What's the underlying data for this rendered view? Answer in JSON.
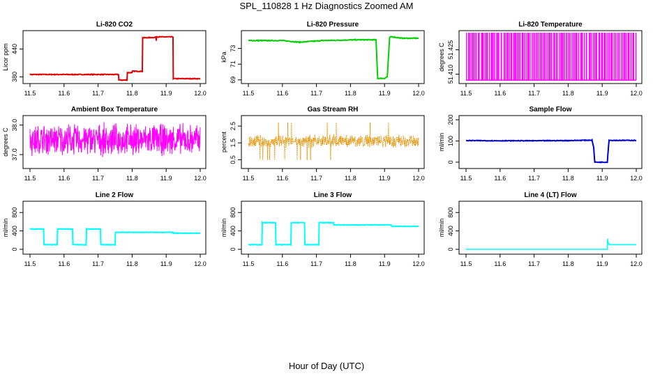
{
  "page_title": "SPL_110828 1 Hz Diagnostics Zoomed AM",
  "x_axis_label": "Hour of Day (UTC)",
  "chart_data": [
    {
      "type": "line",
      "title": "Li-820 CO2",
      "ylabel": "Licor ppm",
      "xlim": [
        11.5,
        12.0
      ],
      "ylim": [
        370,
        475
      ],
      "xticks": [
        "11.5",
        "11.6",
        "11.7",
        "11.8",
        "11.9",
        "12.0"
      ],
      "yticks": [
        "380",
        "440"
      ],
      "ytick_values": [
        380,
        440
      ],
      "color": "#e00000",
      "noise": 0.8,
      "x": [
        11.5,
        11.76,
        11.761,
        11.785,
        11.786,
        11.8,
        11.801,
        11.83,
        11.831,
        11.87,
        11.871,
        11.872,
        11.873,
        11.92,
        11.921,
        12.0
      ],
      "y": [
        385,
        385,
        373,
        373,
        389,
        389,
        392,
        392,
        464,
        465,
        458,
        468,
        466,
        466,
        376,
        376
      ]
    },
    {
      "type": "line",
      "title": "Li-820 Pressure",
      "ylabel": "kPa",
      "xlim": [
        11.5,
        12.0
      ],
      "ylim": [
        68.8,
        75
      ],
      "xticks": [
        "11.5",
        "11.6",
        "11.7",
        "11.8",
        "11.9",
        "12.0"
      ],
      "yticks": [
        "69",
        "71",
        "73"
      ],
      "ytick_values": [
        69,
        71,
        73
      ],
      "color": "#00d000",
      "noise": 0.05,
      "x": [
        11.5,
        11.6,
        11.65,
        11.72,
        11.82,
        11.875,
        11.88,
        11.9,
        11.908,
        11.915,
        11.92,
        11.95,
        12.0
      ],
      "y": [
        74.0,
        74.0,
        73.8,
        74.0,
        74.1,
        74.1,
        69.2,
        69.2,
        69.4,
        74.4,
        74.5,
        74.3,
        74.3
      ]
    },
    {
      "type": "spikes",
      "title": "Li-820 Temperature",
      "ylabel": "degrees C",
      "xlim": [
        11.5,
        12.0
      ],
      "ylim": [
        51.4055,
        51.4355
      ],
      "xticks": [
        "11.5",
        "11.6",
        "11.7",
        "11.8",
        "11.9",
        "12.0"
      ],
      "yticks": [
        "51.410",
        "51.425"
      ],
      "ytick_values": [
        51.41,
        51.425
      ],
      "color": "#ff00ff",
      "low": 51.4063,
      "high": 51.4355,
      "count": 120
    },
    {
      "type": "noise",
      "title": "Ambient Box Temperature",
      "ylabel": "degrees C",
      "xlim": [
        11.5,
        12.0
      ],
      "ylim": [
        36.6,
        38.25
      ],
      "xticks": [
        "11.5",
        "11.6",
        "11.7",
        "11.8",
        "11.9",
        "12.0"
      ],
      "yticks": [
        "37.0",
        "38.0"
      ],
      "ytick_values": [
        37.0,
        38.0
      ],
      "color": "#ff00ff",
      "center": 37.5,
      "spread": 0.5,
      "count": 600
    },
    {
      "type": "noise",
      "title": "Gas Stream RH",
      "ylabel": "percent",
      "xlim": [
        11.5,
        12.0
      ],
      "ylim": [
        0.1,
        3.0
      ],
      "xticks": [
        "11.5",
        "11.6",
        "11.7",
        "11.8",
        "11.9",
        "12.0"
      ],
      "yticks": [
        "0.5",
        "1.5",
        "2.5"
      ],
      "ytick_values": [
        0.5,
        1.5,
        2.5
      ],
      "color": "#e89000",
      "center": 1.6,
      "spread": 0.35,
      "count": 600,
      "spikes": true
    },
    {
      "type": "line",
      "title": "Sample Flow",
      "ylabel": "ml/min",
      "xlim": [
        11.5,
        12.0
      ],
      "ylim": [
        -20,
        210
      ],
      "xticks": [
        "11.5",
        "11.6",
        "11.7",
        "11.8",
        "11.9",
        "12.0"
      ],
      "yticks": [
        "0",
        "100",
        "200"
      ],
      "ytick_values": [
        0,
        100,
        200
      ],
      "color": "#0000d0",
      "noise": 1.5,
      "x": [
        11.5,
        11.6,
        11.7,
        11.8,
        11.87,
        11.875,
        11.878,
        11.91,
        11.915,
        11.92,
        12.0
      ],
      "y": [
        102,
        101,
        101,
        102,
        104,
        70,
        0,
        0,
        0,
        103,
        103
      ]
    },
    {
      "type": "line",
      "title": "Line 2 Flow",
      "ylabel": "ml/min",
      "xlim": [
        11.5,
        12.0
      ],
      "ylim": [
        -60,
        1000
      ],
      "xticks": [
        "11.5",
        "11.6",
        "11.7",
        "11.8",
        "11.9",
        "12.0"
      ],
      "yticks": [
        "0",
        "400",
        "800"
      ],
      "ytick_values": [
        0,
        400,
        800
      ],
      "color": "#00ffff",
      "noise": 6,
      "x": [
        11.5,
        11.54,
        11.541,
        11.58,
        11.581,
        11.625,
        11.626,
        11.665,
        11.666,
        11.707,
        11.708,
        11.75,
        11.751,
        11.92,
        11.921,
        12.0
      ],
      "y": [
        440,
        440,
        100,
        100,
        440,
        440,
        100,
        100,
        440,
        440,
        100,
        100,
        370,
        370,
        350,
        350
      ]
    },
    {
      "type": "line",
      "title": "Line 3 Flow",
      "ylabel": "ml/min",
      "xlim": [
        11.5,
        12.0
      ],
      "ylim": [
        -60,
        1000
      ],
      "xticks": [
        "11.5",
        "11.6",
        "11.7",
        "11.8",
        "11.9",
        "12.0"
      ],
      "yticks": [
        "0",
        "400",
        "800"
      ],
      "ytick_values": [
        0,
        400,
        800
      ],
      "color": "#00ffff",
      "noise": 6,
      "x": [
        11.5,
        11.54,
        11.541,
        11.58,
        11.581,
        11.625,
        11.626,
        11.665,
        11.666,
        11.707,
        11.708,
        11.75,
        11.751,
        11.92,
        11.921,
        12.0
      ],
      "y": [
        100,
        100,
        580,
        580,
        100,
        100,
        580,
        580,
        100,
        100,
        580,
        580,
        530,
        530,
        500,
        500
      ]
    },
    {
      "type": "line",
      "title": "Line 4 (LT) Flow",
      "ylabel": "ml/min",
      "xlim": [
        11.5,
        12.0
      ],
      "ylim": [
        -60,
        1000
      ],
      "xticks": [
        "11.5",
        "11.6",
        "11.7",
        "11.8",
        "11.9",
        "12.0"
      ],
      "yticks": [
        "0",
        "400",
        "800"
      ],
      "ytick_values": [
        0,
        400,
        800
      ],
      "color": "#00ffff",
      "noise": 0,
      "x": [
        11.5,
        11.915,
        11.916,
        11.917,
        11.92,
        11.921,
        12.0
      ],
      "y": [
        0,
        0,
        230,
        130,
        130,
        100,
        100
      ]
    }
  ]
}
